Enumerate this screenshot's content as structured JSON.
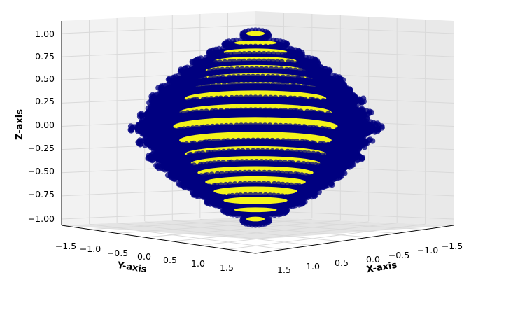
{
  "chart_data": {
    "type": "scatter",
    "projection": "3d",
    "title": "",
    "xlabel": "X-axis",
    "ylabel": "Y-axis",
    "zlabel": "Z-axis",
    "x_ticks": [
      "1.5",
      "1.0",
      "0.5",
      "0.0",
      "−0.5",
      "−1.0",
      "−1.5"
    ],
    "y_ticks": [
      "−1.5",
      "−1.0",
      "−0.5",
      "0.0",
      "0.5",
      "1.0",
      "1.5"
    ],
    "z_ticks": [
      "1.00",
      "0.75",
      "0.50",
      "0.25",
      "0.00",
      "−0.25",
      "−0.50",
      "−0.75",
      "−1.00"
    ],
    "xlim": [
      -1.5,
      1.5
    ],
    "ylim": [
      -1.5,
      1.5
    ],
    "zlim": [
      -1.0,
      1.0
    ],
    "grid": true,
    "rings": [
      {
        "z": 1.0,
        "radius": 0.12
      },
      {
        "z": 0.9,
        "radius": 0.28
      },
      {
        "z": 0.8,
        "radius": 0.42
      },
      {
        "z": 0.7,
        "radius": 0.55
      },
      {
        "z": 0.6,
        "radius": 0.66
      },
      {
        "z": 0.5,
        "radius": 0.76
      },
      {
        "z": 0.4,
        "radius": 0.85
      },
      {
        "z": 0.3,
        "radius": 0.93
      },
      {
        "z": 0.15,
        "radius": 1.0
      },
      {
        "z": 0.0,
        "radius": 1.08
      },
      {
        "z": -0.15,
        "radius": 1.0
      },
      {
        "z": -0.3,
        "radius": 0.93
      },
      {
        "z": -0.4,
        "radius": 0.85
      },
      {
        "z": -0.5,
        "radius": 0.76
      },
      {
        "z": -0.6,
        "radius": 0.66
      },
      {
        "z": -0.7,
        "radius": 0.55
      },
      {
        "z": -0.8,
        "radius": 0.42
      },
      {
        "z": -0.9,
        "radius": 0.28
      },
      {
        "z": -1.0,
        "radius": 0.12
      }
    ],
    "series": [
      {
        "color": "#000080",
        "role": "outer shell"
      },
      {
        "color": "#f4f41a",
        "role": "inner disks"
      }
    ],
    "colors": {
      "pane": "#f2f2f2",
      "grid": "#d9d9d9",
      "edge": "#000000"
    }
  }
}
